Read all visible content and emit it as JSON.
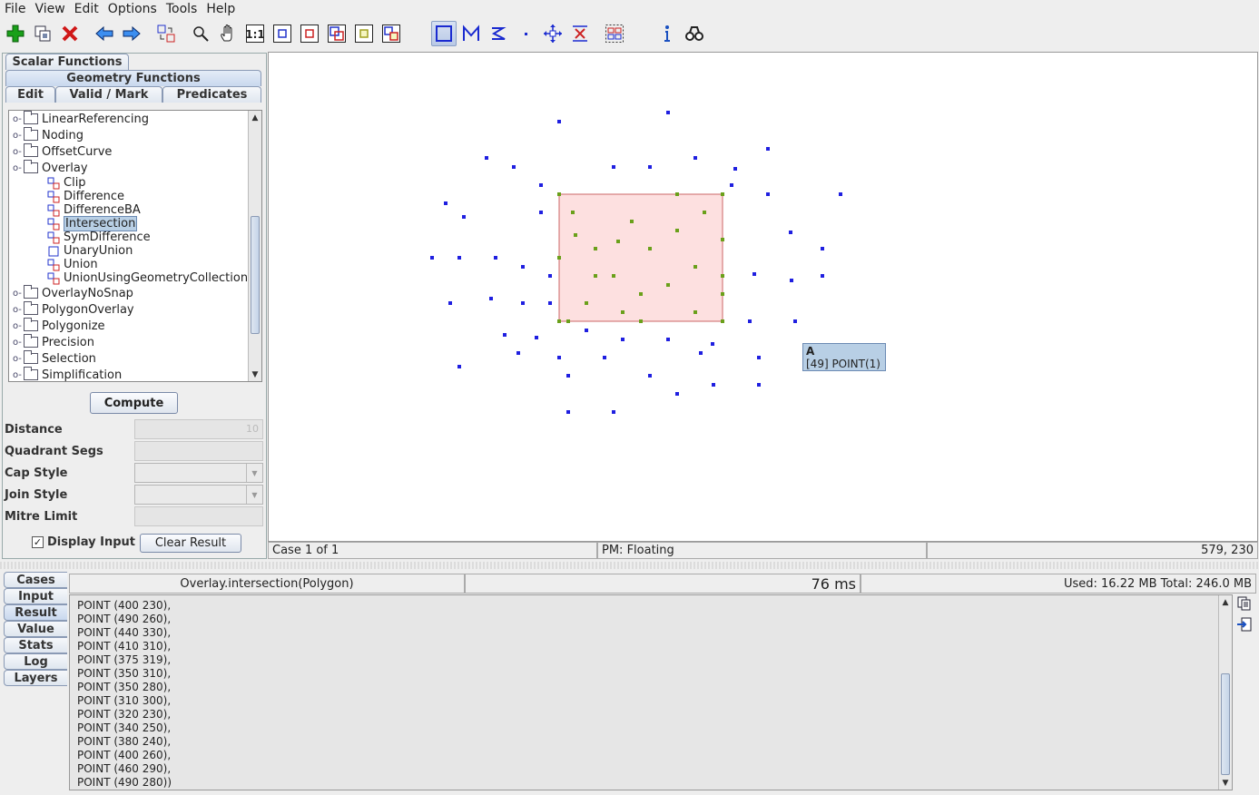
{
  "menu": [
    "File",
    "View",
    "Edit",
    "Options",
    "Tools",
    "Help"
  ],
  "toolbar": {
    "buttons": [
      "new-case-icon",
      "copy-case-icon",
      "delete-case-icon",
      "previous-case-icon",
      "next-case-icon",
      "exchange-geometries-icon",
      "zoom-icon",
      "pan-icon",
      "zoom-one-to-one-icon",
      "zoom-to-input-a-icon",
      "zoom-to-input-b-icon",
      "zoom-to-inputs-icon",
      "zoom-to-result-icon",
      "zoom-to-full-icon",
      "draw-polygon-icon",
      "draw-linestring-icon",
      "draw-linestring-alt-icon",
      "draw-point-icon",
      "edit-vertex-icon",
      "delete-vertex-icon",
      "extract-component-icon",
      "info-icon",
      "find-icon"
    ]
  },
  "left": {
    "tab_scalar": "Scalar Functions",
    "tab_geometry": "Geometry Functions",
    "tab_edit": "Edit",
    "tab_valid": "Valid / Mark",
    "tab_predicates": "Predicates",
    "tree": {
      "folders_before": [
        "LinearReferencing",
        "Noding",
        "OffsetCurve",
        "Overlay"
      ],
      "overlay_children": [
        "Clip",
        "Difference",
        "DifferenceBA",
        "Intersection",
        "SymDifference",
        "UnaryUnion",
        "Union",
        "UnionUsingGeometryCollection"
      ],
      "selected": "Intersection",
      "folders_after": [
        "OverlayNoSnap",
        "PolygonOverlay",
        "Polygonize",
        "Precision",
        "Selection",
        "Simplification"
      ]
    },
    "compute_label": "Compute",
    "params": {
      "distance_label": "Distance",
      "distance_value": "10",
      "quadrant_label": "Quadrant Segs",
      "cap_label": "Cap Style",
      "join_label": "Join Style",
      "mitre_label": "Mitre Limit"
    },
    "display_input_label": "Display Input",
    "display_input_checked": "✓",
    "clear_result_label": "Clear Result"
  },
  "canvas": {
    "tooltip_title": "A",
    "tooltip_text": "[49] POINT(1)",
    "colors": {
      "input_point": "#1f1fe0",
      "result_point": "#6aa01a",
      "polygon_fill": "#fde0e0",
      "polygon_stroke": "#cc6666"
    }
  },
  "status": {
    "case": "Case 1 of 1",
    "pm": "PM: Floating",
    "coords": "579, 230"
  },
  "bottom": {
    "tabs": [
      "Cases",
      "Input",
      "Result",
      "Value",
      "Stats",
      "Log",
      "Layers"
    ],
    "active_tab": "Result",
    "operation": "Overlay.intersection(Polygon)",
    "time": "76 ms",
    "memory": "Used: 16.22 MB   Total: 246.0 MB",
    "result_lines": [
      "POINT (400 230),",
      "POINT (490 260),",
      "POINT (440 330),",
      "POINT (410 310),",
      "POINT (375 319),",
      "POINT (350 310),",
      "POINT (350 280),",
      "POINT (310 300),",
      "POINT (320 230),",
      "POINT (340 250),",
      "POINT (380 240),",
      "POINT (400 260),",
      "POINT (460 290),",
      "POINT (490 280))"
    ]
  }
}
